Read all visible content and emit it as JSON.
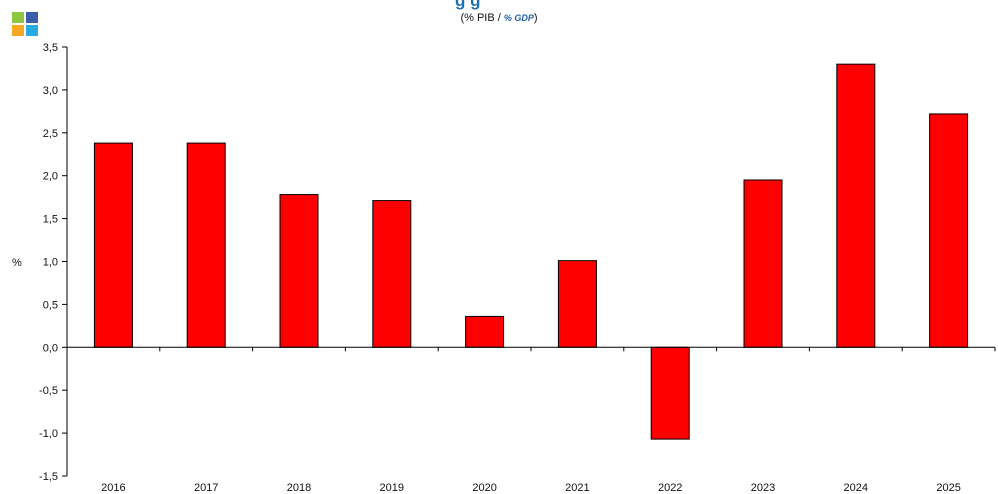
{
  "header": {
    "title_fragment": "g        g",
    "subtitle_prefix": "(% PIB / ",
    "subtitle_italic": "% GDP",
    "subtitle_suffix": ")"
  },
  "logo": {
    "name": "logo-icon",
    "colors": [
      "#8dc63f",
      "#3a5fa8",
      "#f7a823",
      "#29abe2"
    ]
  },
  "colors": {
    "bar_fill": "#ff0000",
    "bar_stroke": "#000000",
    "axis": "#000000"
  },
  "chart_data": {
    "type": "bar",
    "categories": [
      "2016",
      "2017",
      "2018",
      "2019",
      "2020",
      "2021",
      "2022",
      "2023",
      "2024",
      "2025"
    ],
    "values": [
      2.38,
      2.38,
      1.78,
      1.71,
      0.36,
      1.01,
      -1.07,
      1.95,
      3.3,
      2.72
    ],
    "ylabel": "%",
    "ylim": [
      -1.5,
      3.5
    ],
    "yticks": [
      "-1,5",
      "-1,0",
      "-0,5",
      "0,0",
      "0,5",
      "1,0",
      "1,5",
      "2,0",
      "2,5",
      "3,0",
      "3,5"
    ],
    "grid": false,
    "legend": "none"
  }
}
